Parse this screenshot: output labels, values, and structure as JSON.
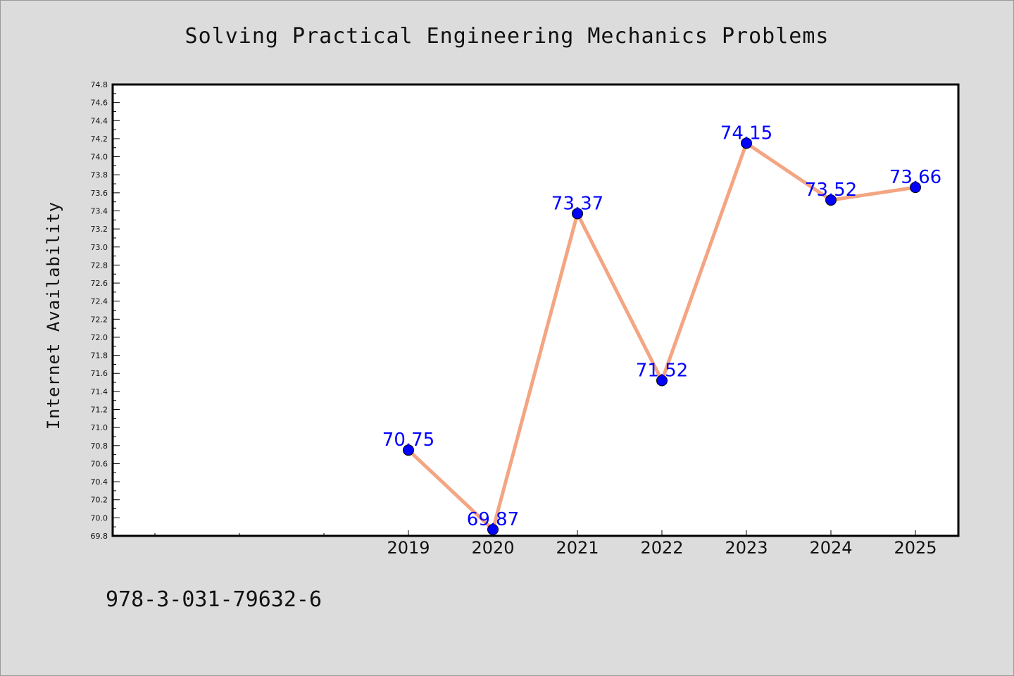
{
  "page": {
    "background": "#dcdcdc",
    "footnote": "978-3-031-79632-6"
  },
  "chart_data": {
    "type": "line",
    "title": "Solving Practical Engineering Mechanics Problems",
    "xlabel": "",
    "ylabel": "Internet Availability",
    "categories": [
      "2019",
      "2020",
      "2021",
      "2022",
      "2023",
      "2024",
      "2025"
    ],
    "x_minor_ticks": 3,
    "values": [
      70.75,
      69.87,
      73.37,
      71.52,
      74.15,
      73.52,
      73.66
    ],
    "value_labels": [
      "70.75",
      "69.87",
      "73.37",
      "71.52",
      "74.15",
      "73.52",
      "73.66"
    ],
    "ylim": [
      69.8,
      74.8
    ],
    "ytick_step": 0.2,
    "grid": false,
    "legend": "none",
    "line_color": "#f4a582",
    "marker_color": "#0000ff",
    "label_color": "#0000ff"
  }
}
